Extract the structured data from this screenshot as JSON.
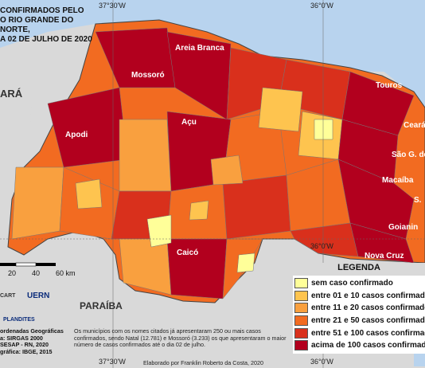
{
  "title_lines": [
    "CONFIRMADOS PELO",
    "O RIO GRANDE DO NORTE,",
    "A 02 DE JULHO DE 2020"
  ],
  "coords": {
    "top_left": "37°30'W",
    "top_right": "36°0'W",
    "bottom_left": "37°30'W",
    "bottom_right": "36°0'W",
    "mid_right": "36°0'W"
  },
  "neighbors": {
    "ceara": "ARÁ",
    "paraiba": "PARAÍBA"
  },
  "cities": {
    "areia_branca": "Areia Branca",
    "mossoro": "Mossoró",
    "touros": "Touros",
    "apodi": "Apodi",
    "acu": "Açu",
    "ceara_mirim": "Ceará-",
    "sao_goncalo": "São G. do",
    "macaiba": "Macaíba",
    "natal": "S.",
    "goianinha": "Goianin",
    "nova_cruz": "Nova Cruz",
    "caico": "Caicó"
  },
  "scalebar": {
    "labels": [
      "20",
      "40",
      "60 km"
    ]
  },
  "legend": {
    "title": "LEGENDA",
    "items": [
      {
        "label": "sem caso confirmado",
        "color": "#ffff99"
      },
      {
        "label": "entre 01 e 10 casos confirmados",
        "color": "#fec44f"
      },
      {
        "label": "entre 11 e 20 casos confirmados",
        "color": "#f9a03f"
      },
      {
        "label": "entre 21 e 50 casos confirmados",
        "color": "#f26b21"
      },
      {
        "label": "entre 51 e 100 casos confirmados",
        "color": "#d9301c"
      },
      {
        "label": "acima de 100 casos confirmados",
        "color": "#b2001e"
      }
    ]
  },
  "info_lines": [
    "ordenadas Geográficas",
    "a: SIRGAS 2000",
    "SESAP - RN, 2020",
    "gráfica: IBGE, 2015"
  ],
  "note": "Os municípios com os nomes citados já apresentaram 250 ou mais casos confirmados, sendo Natal (12.781) e Mossoró (3.233) os que apresentaram o maior número de casos confirmados até o dia 02 de julho.",
  "credit": "Elaborado por Franklin Roberto da Costa, 2020",
  "logos": {
    "uern": "UERN",
    "cart": "CART",
    "plandites": "PLANDITES"
  }
}
